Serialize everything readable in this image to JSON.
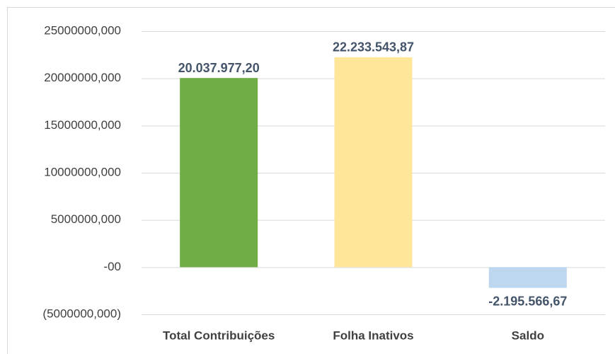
{
  "chart_data": {
    "type": "bar",
    "categories": [
      "Total Contribuições",
      "Folha Inativos",
      "Saldo"
    ],
    "values": [
      20037977.2,
      22233543.87,
      -2195566.67
    ],
    "value_labels": [
      "20.037.977,20",
      "22.233.543,87",
      "-2.195.566,67"
    ],
    "colors": [
      "#70ad47",
      "#ffe699",
      "#bdd7ee"
    ],
    "ylim": [
      -5000000,
      25000000
    ],
    "yticks": [
      {
        "value": -5000000,
        "label": "(5000000,000)"
      },
      {
        "value": 0,
        "label": "-00"
      },
      {
        "value": 5000000,
        "label": "5000000,000"
      },
      {
        "value": 10000000,
        "label": "10000000,000"
      },
      {
        "value": 15000000,
        "label": "15000000,000"
      },
      {
        "value": 20000000,
        "label": "20000000,000"
      },
      {
        "value": 25000000,
        "label": "25000000,000"
      }
    ],
    "grid": true
  }
}
